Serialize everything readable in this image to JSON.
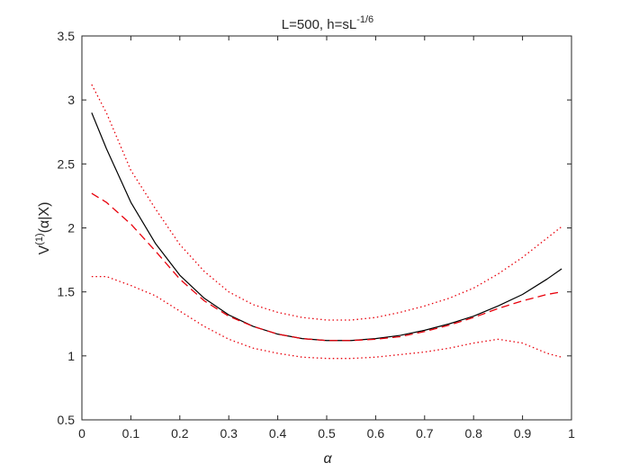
{
  "chart_data": {
    "type": "line",
    "title": {
      "main": "L=500, h=sL",
      "superscript": "-1/6"
    },
    "xlabel": "α",
    "ylabel": {
      "prefix": "V",
      "superscript": "(1)",
      "suffix": "(α|X)"
    },
    "xlim": [
      0,
      1
    ],
    "ylim": [
      0.5,
      3.5
    ],
    "x_ticks": [
      0,
      0.1,
      0.2,
      0.3,
      0.4,
      0.5,
      0.6,
      0.7,
      0.8,
      0.9,
      1
    ],
    "x_tick_labels": [
      "0",
      "0.1",
      "0.2",
      "0.3",
      "0.4",
      "0.5",
      "0.6",
      "0.7",
      "0.8",
      "0.9",
      "1"
    ],
    "y_ticks": [
      0.5,
      1,
      1.5,
      2,
      2.5,
      3,
      3.5
    ],
    "y_tick_labels": [
      "0.5",
      "1",
      "1.5",
      "2",
      "2.5",
      "3",
      "3.5"
    ],
    "grid": false,
    "box": true,
    "series": [
      {
        "style": "solid",
        "color": "#000000",
        "x": [
          0.02,
          0.05,
          0.1,
          0.15,
          0.2,
          0.25,
          0.3,
          0.35,
          0.4,
          0.45,
          0.5,
          0.55,
          0.6,
          0.65,
          0.7,
          0.75,
          0.8,
          0.85,
          0.9,
          0.95,
          0.98
        ],
        "y": [
          2.9,
          2.62,
          2.2,
          1.88,
          1.63,
          1.45,
          1.32,
          1.23,
          1.17,
          1.135,
          1.12,
          1.12,
          1.135,
          1.16,
          1.2,
          1.25,
          1.31,
          1.39,
          1.48,
          1.6,
          1.68
        ]
      },
      {
        "style": "dashed",
        "color": "#e8000b",
        "x": [
          0.02,
          0.05,
          0.1,
          0.15,
          0.2,
          0.25,
          0.3,
          0.35,
          0.4,
          0.45,
          0.5,
          0.55,
          0.6,
          0.65,
          0.7,
          0.75,
          0.8,
          0.85,
          0.9,
          0.95,
          0.98
        ],
        "y": [
          2.27,
          2.2,
          2.03,
          1.82,
          1.6,
          1.43,
          1.31,
          1.23,
          1.17,
          1.135,
          1.12,
          1.12,
          1.13,
          1.15,
          1.19,
          1.24,
          1.3,
          1.37,
          1.43,
          1.48,
          1.5
        ]
      },
      {
        "style": "dotted",
        "color": "#e8000b",
        "x": [
          0.02,
          0.05,
          0.1,
          0.15,
          0.2,
          0.25,
          0.3,
          0.35,
          0.4,
          0.45,
          0.5,
          0.55,
          0.6,
          0.65,
          0.7,
          0.75,
          0.8,
          0.85,
          0.9,
          0.95,
          0.98
        ],
        "y": [
          3.12,
          2.9,
          2.45,
          2.15,
          1.87,
          1.66,
          1.5,
          1.4,
          1.34,
          1.3,
          1.28,
          1.28,
          1.3,
          1.34,
          1.39,
          1.45,
          1.53,
          1.64,
          1.77,
          1.92,
          2.01
        ]
      },
      {
        "style": "dotted",
        "color": "#e8000b",
        "x": [
          0.02,
          0.05,
          0.1,
          0.15,
          0.2,
          0.25,
          0.3,
          0.35,
          0.4,
          0.45,
          0.5,
          0.55,
          0.6,
          0.65,
          0.7,
          0.75,
          0.8,
          0.85,
          0.9,
          0.95,
          0.98
        ],
        "y": [
          1.62,
          1.62,
          1.55,
          1.47,
          1.35,
          1.23,
          1.13,
          1.06,
          1.02,
          0.99,
          0.98,
          0.98,
          0.99,
          1.01,
          1.03,
          1.06,
          1.1,
          1.13,
          1.1,
          1.02,
          0.99
        ]
      }
    ]
  }
}
